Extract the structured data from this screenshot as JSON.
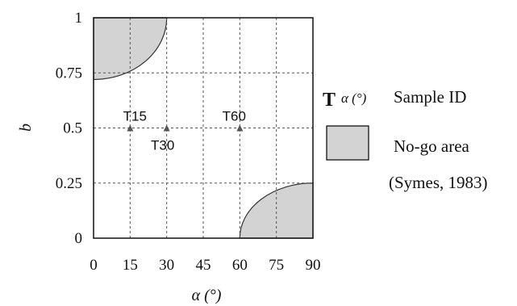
{
  "chart_data": {
    "type": "scatter",
    "xlabel": "α (°)",
    "ylabel": "b",
    "xlim": [
      0,
      90
    ],
    "ylim": [
      0,
      1
    ],
    "xticks": [
      0,
      15,
      30,
      45,
      60,
      75,
      90
    ],
    "xtick_labels": [
      "0",
      "15",
      "30",
      "45",
      "60",
      "75",
      "90"
    ],
    "yticks": [
      0,
      0.25,
      0.5,
      0.75,
      1
    ],
    "ytick_labels": [
      "0",
      "0.25",
      "0.5",
      "0.75",
      "1"
    ],
    "grid": true,
    "points": [
      {
        "x": 15,
        "y": 0.5,
        "label": "T15"
      },
      {
        "x": 30,
        "y": 0.5,
        "label": "T30"
      },
      {
        "x": 60,
        "y": 0.5,
        "label": "T60"
      }
    ],
    "no_go_regions": [
      {
        "corner": "top-left",
        "x_range": [
          0,
          30
        ],
        "y_range": [
          0.72,
          1
        ]
      },
      {
        "corner": "bottom-right",
        "x_range": [
          60,
          90
        ],
        "y_range": [
          0,
          0.25
        ]
      }
    ],
    "legend": {
      "placement": "right",
      "sample_marker": "T",
      "sample_symbol": "α (°)",
      "sample_label": "Sample ID",
      "region_label_line1": "No-go area",
      "region_label_line2": "(Symes, 1983)"
    },
    "colors": {
      "no_go_fill": "#d3d3d3",
      "grid": "#555555",
      "axes": "#111111",
      "marker": "#555555"
    }
  }
}
